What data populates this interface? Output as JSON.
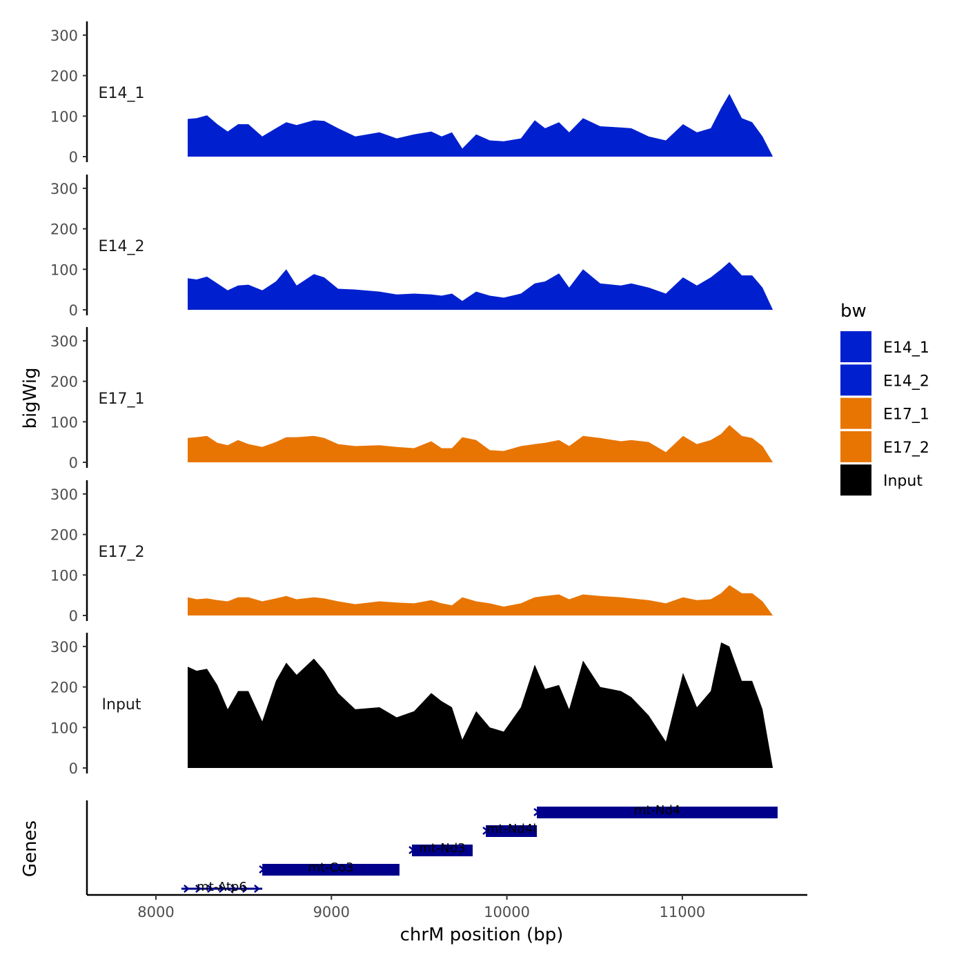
{
  "chart_data": {
    "type": "area",
    "xlabel": "chrM position (bp)",
    "ylabel": "bigWig",
    "genes_label": "Genes",
    "xlim": [
      7606,
      11711
    ],
    "ylim": [
      0,
      330
    ],
    "xticks": [
      8000,
      9000,
      10000,
      11000
    ],
    "yticks": [
      0,
      100,
      200,
      300
    ],
    "x": [
      8181,
      8232,
      8291,
      8350,
      8409,
      8468,
      8527,
      8606,
      8684,
      8743,
      8802,
      8900,
      8959,
      9038,
      9136,
      9274,
      9372,
      9471,
      9569,
      9628,
      9687,
      9746,
      9825,
      9903,
      9982,
      10080,
      10159,
      10218,
      10297,
      10355,
      10434,
      10532,
      10650,
      10709,
      10808,
      10906,
      11004,
      11083,
      11162,
      11221,
      11268,
      11339,
      11398,
      11457,
      11516
    ],
    "series": [
      {
        "name": "E14_1",
        "color": "#0020CF",
        "values": [
          93,
          95,
          102,
          80,
          62,
          80,
          80,
          50,
          70,
          85,
          78,
          90,
          88,
          70,
          50,
          60,
          45,
          55,
          62,
          50,
          60,
          20,
          55,
          40,
          38,
          45,
          90,
          70,
          85,
          60,
          95,
          75,
          72,
          70,
          50,
          40,
          80,
          60,
          70,
          120,
          155,
          95,
          85,
          50,
          0
        ]
      },
      {
        "name": "E14_2",
        "color": "#0020CF",
        "values": [
          78,
          75,
          82,
          65,
          48,
          60,
          62,
          48,
          70,
          100,
          60,
          88,
          80,
          52,
          50,
          45,
          38,
          40,
          38,
          35,
          40,
          22,
          45,
          35,
          30,
          40,
          65,
          70,
          90,
          55,
          100,
          65,
          60,
          65,
          55,
          40,
          80,
          60,
          80,
          100,
          118,
          85,
          85,
          55,
          0
        ]
      },
      {
        "name": "E17_1",
        "color": "#E87502",
        "values": [
          60,
          62,
          65,
          48,
          42,
          55,
          45,
          38,
          50,
          62,
          62,
          65,
          60,
          45,
          40,
          42,
          38,
          35,
          52,
          35,
          35,
          62,
          55,
          30,
          28,
          40,
          45,
          48,
          55,
          40,
          65,
          60,
          52,
          55,
          50,
          25,
          65,
          45,
          55,
          70,
          92,
          65,
          60,
          40,
          0
        ]
      },
      {
        "name": "E17_2",
        "color": "#E87502",
        "values": [
          45,
          40,
          42,
          38,
          35,
          45,
          45,
          35,
          42,
          48,
          40,
          45,
          42,
          35,
          28,
          35,
          32,
          30,
          38,
          30,
          25,
          45,
          35,
          30,
          22,
          30,
          45,
          48,
          52,
          40,
          52,
          48,
          45,
          42,
          38,
          30,
          45,
          38,
          40,
          55,
          75,
          55,
          55,
          35,
          0
        ]
      },
      {
        "name": "Input",
        "color": "#000000",
        "values": [
          250,
          240,
          245,
          205,
          145,
          190,
          190,
          115,
          215,
          260,
          230,
          270,
          240,
          185,
          145,
          150,
          125,
          140,
          185,
          165,
          150,
          70,
          140,
          100,
          90,
          150,
          255,
          195,
          205,
          145,
          265,
          200,
          190,
          175,
          130,
          65,
          235,
          150,
          190,
          310,
          300,
          215,
          215,
          145,
          0
        ]
      }
    ],
    "genes": [
      {
        "name": "mt-Atp6",
        "start": 8145,
        "end": 8606,
        "level": 1,
        "thin": true
      },
      {
        "name": "mt-Co3",
        "start": 8606,
        "end": 9388,
        "level": 2
      },
      {
        "name": "mt-Nd3",
        "start": 9459,
        "end": 9805,
        "level": 3
      },
      {
        "name": "mt-Nd4l",
        "start": 9880,
        "end": 10171,
        "level": 4
      },
      {
        "name": "mt-Nd4",
        "start": 10171,
        "end": 11543,
        "level": 5
      }
    ],
    "gene_color": "#00008B",
    "legend": {
      "title": "bw",
      "placement": "right",
      "entries": [
        "E14_1",
        "E14_2",
        "E17_1",
        "E17_2",
        "Input"
      ]
    }
  }
}
